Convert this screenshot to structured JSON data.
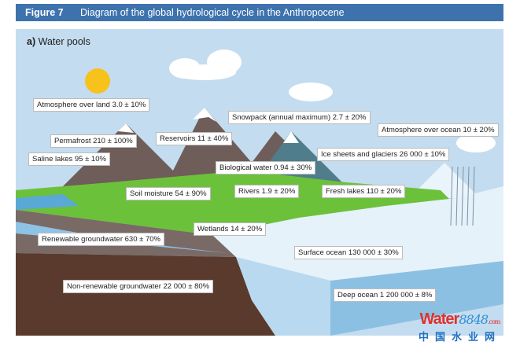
{
  "header": {
    "figure": "Figure 7",
    "title": "Diagram of the global hydrological cycle in the Anthropocene"
  },
  "panel": {
    "letter": "a)",
    "title": "Water pools"
  },
  "labels": [
    "Atmosphere over land 3.0 ± 10%",
    "Snowpack (annual maximum) 2.7 ± 20%",
    "Atmosphere over ocean 10 ± 20%",
    "Permafrost 210 ± 100%",
    "Reservoirs 11 ± 40%",
    "Ice sheets and glaciers 26 000 ± 10%",
    "Saline lakes 95 ± 10%",
    "Biological water 0.94 ± 30%",
    "Soil moisture 54 ± 90%",
    "Rivers 1.9 ± 20%",
    "Fresh lakes 110 ± 20%",
    "Wetlands 14 ± 20%",
    "Renewable groundwater 630 ± 70%",
    "Surface ocean 130 000 ± 30%",
    "Non-renewable groundwater 22 000 ± 80%",
    "Deep ocean 1 200 000 ± 8%"
  ],
  "watermark": {
    "brand": "Water",
    "brand_number": "8848",
    "domain": ".com",
    "chinese": "中国水业网"
  },
  "colors": {
    "header": "#3d72ad",
    "sky": "#c4dcef",
    "land": "#6cc13a",
    "soil": "#5a3a2c",
    "ocean": "#e6f2fa"
  }
}
